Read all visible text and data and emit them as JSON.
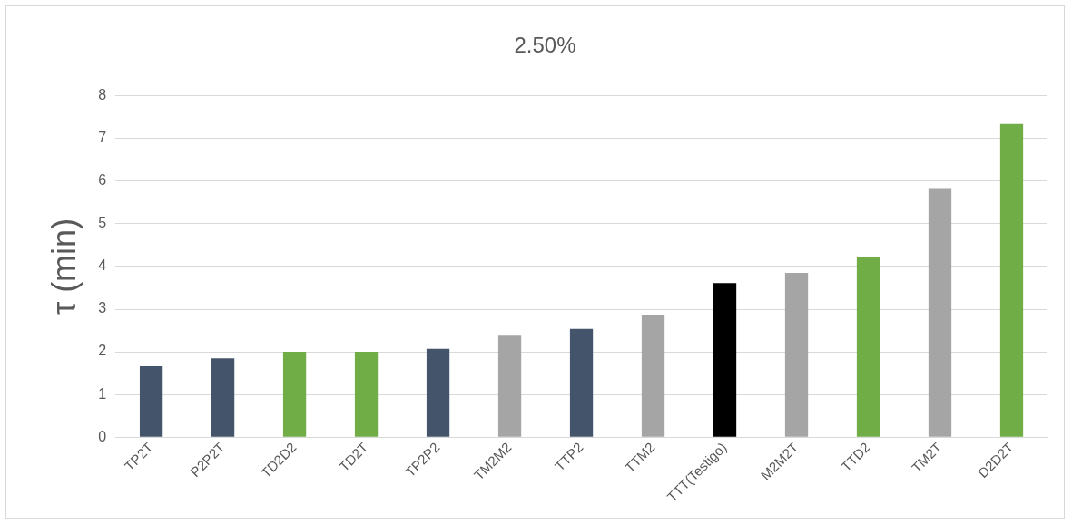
{
  "chart_data": {
    "type": "bar",
    "title": "2.50%",
    "ylabel": "τ (min)",
    "categories": [
      "TP2T",
      "P2P2T",
      "TD2D2",
      "TD2T",
      "TP2P2",
      "TM2M2",
      "TTP2",
      "TTM2",
      "TTT(Testigo)",
      "M2M2T",
      "TTD2",
      "TM2T",
      "D2D2T"
    ],
    "values": [
      1.66,
      1.85,
      2.0,
      2.0,
      2.07,
      2.38,
      2.54,
      2.85,
      3.61,
      3.85,
      4.23,
      5.84,
      7.34
    ],
    "colors": [
      "#44546a",
      "#44546a",
      "#70ad47",
      "#70ad47",
      "#44546a",
      "#a5a5a5",
      "#44546a",
      "#a5a5a5",
      "#000000",
      "#a5a5a5",
      "#70ad47",
      "#a5a5a5",
      "#70ad47"
    ],
    "ylim": [
      0,
      8
    ],
    "yticks": [
      0,
      1,
      2,
      3,
      4,
      5,
      6,
      7,
      8
    ],
    "grid": "y",
    "legend": false
  }
}
